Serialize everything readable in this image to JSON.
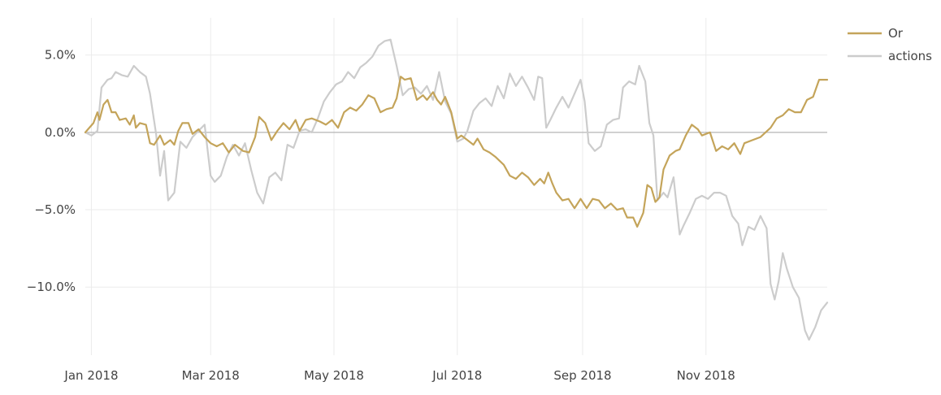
{
  "chart_data": {
    "type": "line",
    "title": "",
    "xlabel": "",
    "ylabel": "",
    "xlim": [
      "2017-12-29",
      "2018-12-31"
    ],
    "ylim": [
      -14.4,
      7.4
    ],
    "y_unit": "%",
    "x_ticks": [
      {
        "date": "2018-01-01",
        "label": "Jan 2018"
      },
      {
        "date": "2018-03-01",
        "label": "Mar 2018"
      },
      {
        "date": "2018-05-01",
        "label": "May 2018"
      },
      {
        "date": "2018-07-01",
        "label": "Jul 2018"
      },
      {
        "date": "2018-09-01",
        "label": "Sep 2018"
      },
      {
        "date": "2018-11-01",
        "label": "Nov 2018"
      }
    ],
    "y_ticks": [
      {
        "value": 5,
        "label": "5.0%"
      },
      {
        "value": 0,
        "label": "0.0%"
      },
      {
        "value": -5,
        "label": "−5.0%"
      },
      {
        "value": -10,
        "label": "−10.0%"
      }
    ],
    "grid": true,
    "zero_line": true,
    "legend_position": "top-right",
    "series": [
      {
        "name": "Or",
        "color": "#c4a45a",
        "points": [
          [
            "2017-12-29",
            0.0
          ],
          [
            "2018-01-02",
            0.6
          ],
          [
            "2018-01-04",
            1.3
          ],
          [
            "2018-01-05",
            0.8
          ],
          [
            "2018-01-07",
            1.8
          ],
          [
            "2018-01-09",
            2.1
          ],
          [
            "2018-01-11",
            1.3
          ],
          [
            "2018-01-13",
            1.3
          ],
          [
            "2018-01-15",
            0.8
          ],
          [
            "2018-01-18",
            0.9
          ],
          [
            "2018-01-20",
            0.5
          ],
          [
            "2018-01-22",
            1.1
          ],
          [
            "2018-01-23",
            0.3
          ],
          [
            "2018-01-25",
            0.6
          ],
          [
            "2018-01-28",
            0.5
          ],
          [
            "2018-01-30",
            -0.7
          ],
          [
            "2018-02-01",
            -0.8
          ],
          [
            "2018-02-04",
            -0.2
          ],
          [
            "2018-02-06",
            -0.8
          ],
          [
            "2018-02-09",
            -0.5
          ],
          [
            "2018-02-11",
            -0.8
          ],
          [
            "2018-02-13",
            0.1
          ],
          [
            "2018-02-15",
            0.6
          ],
          [
            "2018-02-18",
            0.6
          ],
          [
            "2018-02-20",
            -0.1
          ],
          [
            "2018-02-23",
            0.2
          ],
          [
            "2018-02-26",
            -0.3
          ],
          [
            "2018-03-01",
            -0.7
          ],
          [
            "2018-03-04",
            -0.9
          ],
          [
            "2018-03-07",
            -0.7
          ],
          [
            "2018-03-10",
            -1.3
          ],
          [
            "2018-03-13",
            -0.8
          ],
          [
            "2018-03-17",
            -1.2
          ],
          [
            "2018-03-20",
            -1.3
          ],
          [
            "2018-03-23",
            -0.3
          ],
          [
            "2018-03-25",
            1.0
          ],
          [
            "2018-03-28",
            0.6
          ],
          [
            "2018-03-31",
            -0.5
          ],
          [
            "2018-04-03",
            0.1
          ],
          [
            "2018-04-06",
            0.6
          ],
          [
            "2018-04-09",
            0.2
          ],
          [
            "2018-04-12",
            0.8
          ],
          [
            "2018-04-14",
            0.1
          ],
          [
            "2018-04-17",
            0.8
          ],
          [
            "2018-04-20",
            0.9
          ],
          [
            "2018-04-24",
            0.7
          ],
          [
            "2018-04-27",
            0.5
          ],
          [
            "2018-04-30",
            0.8
          ],
          [
            "2018-05-03",
            0.3
          ],
          [
            "2018-05-06",
            1.3
          ],
          [
            "2018-05-09",
            1.6
          ],
          [
            "2018-05-12",
            1.4
          ],
          [
            "2018-05-15",
            1.8
          ],
          [
            "2018-05-18",
            2.4
          ],
          [
            "2018-05-21",
            2.2
          ],
          [
            "2018-05-24",
            1.3
          ],
          [
            "2018-05-27",
            1.5
          ],
          [
            "2018-05-30",
            1.6
          ],
          [
            "2018-06-01",
            2.2
          ],
          [
            "2018-06-03",
            3.6
          ],
          [
            "2018-06-05",
            3.4
          ],
          [
            "2018-06-08",
            3.5
          ],
          [
            "2018-06-11",
            2.1
          ],
          [
            "2018-06-14",
            2.4
          ],
          [
            "2018-06-16",
            2.1
          ],
          [
            "2018-06-19",
            2.6
          ],
          [
            "2018-06-21",
            2.1
          ],
          [
            "2018-06-23",
            1.8
          ],
          [
            "2018-06-25",
            2.3
          ],
          [
            "2018-06-28",
            1.3
          ],
          [
            "2018-07-01",
            -0.4
          ],
          [
            "2018-07-03",
            -0.2
          ],
          [
            "2018-07-06",
            -0.5
          ],
          [
            "2018-07-09",
            -0.8
          ],
          [
            "2018-07-11",
            -0.4
          ],
          [
            "2018-07-14",
            -1.1
          ],
          [
            "2018-07-17",
            -1.3
          ],
          [
            "2018-07-20",
            -1.6
          ],
          [
            "2018-07-24",
            -2.1
          ],
          [
            "2018-07-27",
            -2.8
          ],
          [
            "2018-07-30",
            -3.0
          ],
          [
            "2018-08-02",
            -2.6
          ],
          [
            "2018-08-05",
            -2.9
          ],
          [
            "2018-08-08",
            -3.4
          ],
          [
            "2018-08-11",
            -3.0
          ],
          [
            "2018-08-13",
            -3.3
          ],
          [
            "2018-08-15",
            -2.6
          ],
          [
            "2018-08-17",
            -3.3
          ],
          [
            "2018-08-19",
            -3.9
          ],
          [
            "2018-08-22",
            -4.4
          ],
          [
            "2018-08-25",
            -4.3
          ],
          [
            "2018-08-28",
            -4.9
          ],
          [
            "2018-08-31",
            -4.3
          ],
          [
            "2018-09-03",
            -4.9
          ],
          [
            "2018-09-06",
            -4.3
          ],
          [
            "2018-09-09",
            -4.4
          ],
          [
            "2018-09-12",
            -4.9
          ],
          [
            "2018-09-15",
            -4.6
          ],
          [
            "2018-09-18",
            -5.0
          ],
          [
            "2018-09-21",
            -4.9
          ],
          [
            "2018-09-23",
            -5.5
          ],
          [
            "2018-09-26",
            -5.5
          ],
          [
            "2018-09-28",
            -6.1
          ],
          [
            "2018-10-01",
            -5.2
          ],
          [
            "2018-10-03",
            -3.4
          ],
          [
            "2018-10-05",
            -3.6
          ],
          [
            "2018-10-07",
            -4.5
          ],
          [
            "2018-10-09",
            -4.2
          ],
          [
            "2018-10-11",
            -2.4
          ],
          [
            "2018-10-14",
            -1.5
          ],
          [
            "2018-10-17",
            -1.2
          ],
          [
            "2018-10-19",
            -1.1
          ],
          [
            "2018-10-22",
            -0.2
          ],
          [
            "2018-10-25",
            0.5
          ],
          [
            "2018-10-28",
            0.2
          ],
          [
            "2018-10-30",
            -0.2
          ],
          [
            "2018-11-03",
            0.0
          ],
          [
            "2018-11-06",
            -1.2
          ],
          [
            "2018-11-09",
            -0.9
          ],
          [
            "2018-11-12",
            -1.1
          ],
          [
            "2018-11-15",
            -0.7
          ],
          [
            "2018-11-18",
            -1.4
          ],
          [
            "2018-11-20",
            -0.7
          ],
          [
            "2018-11-24",
            -0.5
          ],
          [
            "2018-11-28",
            -0.3
          ],
          [
            "2018-12-03",
            0.3
          ],
          [
            "2018-12-06",
            0.9
          ],
          [
            "2018-12-09",
            1.1
          ],
          [
            "2018-12-12",
            1.5
          ],
          [
            "2018-12-15",
            1.3
          ],
          [
            "2018-12-18",
            1.3
          ],
          [
            "2018-12-21",
            2.1
          ],
          [
            "2018-12-24",
            2.3
          ],
          [
            "2018-12-27",
            3.4
          ],
          [
            "2018-12-31",
            3.4
          ]
        ]
      },
      {
        "name": "actions",
        "color": "#cccccc",
        "points": [
          [
            "2017-12-29",
            0.0
          ],
          [
            "2018-01-01",
            -0.2
          ],
          [
            "2018-01-04",
            0.1
          ],
          [
            "2018-01-06",
            2.9
          ],
          [
            "2018-01-09",
            3.4
          ],
          [
            "2018-01-11",
            3.5
          ],
          [
            "2018-01-13",
            3.9
          ],
          [
            "2018-01-16",
            3.7
          ],
          [
            "2018-01-19",
            3.6
          ],
          [
            "2018-01-22",
            4.3
          ],
          [
            "2018-01-25",
            3.9
          ],
          [
            "2018-01-28",
            3.6
          ],
          [
            "2018-01-30",
            2.5
          ],
          [
            "2018-02-02",
            -0.1
          ],
          [
            "2018-02-04",
            -2.8
          ],
          [
            "2018-02-06",
            -1.2
          ],
          [
            "2018-02-08",
            -4.4
          ],
          [
            "2018-02-11",
            -3.9
          ],
          [
            "2018-02-14",
            -0.6
          ],
          [
            "2018-02-17",
            -1.0
          ],
          [
            "2018-02-20",
            -0.3
          ],
          [
            "2018-02-23",
            0.1
          ],
          [
            "2018-02-26",
            0.5
          ],
          [
            "2018-03-01",
            -2.8
          ],
          [
            "2018-03-03",
            -3.2
          ],
          [
            "2018-03-06",
            -2.8
          ],
          [
            "2018-03-09",
            -1.6
          ],
          [
            "2018-03-12",
            -0.8
          ],
          [
            "2018-03-15",
            -1.5
          ],
          [
            "2018-03-18",
            -0.7
          ],
          [
            "2018-03-21",
            -2.4
          ],
          [
            "2018-03-24",
            -3.9
          ],
          [
            "2018-03-27",
            -4.6
          ],
          [
            "2018-03-30",
            -2.9
          ],
          [
            "2018-04-02",
            -2.6
          ],
          [
            "2018-04-05",
            -3.1
          ],
          [
            "2018-04-08",
            -0.8
          ],
          [
            "2018-04-11",
            -1.0
          ],
          [
            "2018-04-14",
            0.1
          ],
          [
            "2018-04-17",
            0.2
          ],
          [
            "2018-04-20",
            0.0
          ],
          [
            "2018-04-23",
            0.9
          ],
          [
            "2018-04-26",
            2.0
          ],
          [
            "2018-04-29",
            2.6
          ],
          [
            "2018-05-02",
            3.1
          ],
          [
            "2018-05-05",
            3.3
          ],
          [
            "2018-05-08",
            3.9
          ],
          [
            "2018-05-11",
            3.5
          ],
          [
            "2018-05-14",
            4.2
          ],
          [
            "2018-05-17",
            4.5
          ],
          [
            "2018-05-20",
            4.9
          ],
          [
            "2018-05-23",
            5.6
          ],
          [
            "2018-05-26",
            5.9
          ],
          [
            "2018-05-29",
            6.0
          ],
          [
            "2018-06-01",
            4.3
          ],
          [
            "2018-06-04",
            2.4
          ],
          [
            "2018-06-07",
            2.8
          ],
          [
            "2018-06-10",
            2.9
          ],
          [
            "2018-06-13",
            2.5
          ],
          [
            "2018-06-16",
            3.0
          ],
          [
            "2018-06-19",
            2.1
          ],
          [
            "2018-06-22",
            3.9
          ],
          [
            "2018-06-25",
            2.0
          ],
          [
            "2018-06-28",
            1.2
          ],
          [
            "2018-07-01",
            -0.6
          ],
          [
            "2018-07-04",
            -0.4
          ],
          [
            "2018-07-06",
            0.1
          ],
          [
            "2018-07-09",
            1.4
          ],
          [
            "2018-07-12",
            1.9
          ],
          [
            "2018-07-15",
            2.2
          ],
          [
            "2018-07-18",
            1.7
          ],
          [
            "2018-07-21",
            3.0
          ],
          [
            "2018-07-24",
            2.2
          ],
          [
            "2018-07-27",
            3.8
          ],
          [
            "2018-07-30",
            3.0
          ],
          [
            "2018-08-02",
            3.6
          ],
          [
            "2018-08-05",
            2.9
          ],
          [
            "2018-08-08",
            2.1
          ],
          [
            "2018-08-10",
            3.6
          ],
          [
            "2018-08-12",
            3.5
          ],
          [
            "2018-08-14",
            0.3
          ],
          [
            "2018-08-16",
            0.8
          ],
          [
            "2018-08-19",
            1.6
          ],
          [
            "2018-08-22",
            2.3
          ],
          [
            "2018-08-25",
            1.6
          ],
          [
            "2018-08-28",
            2.5
          ],
          [
            "2018-08-31",
            3.4
          ],
          [
            "2018-09-02",
            2.0
          ],
          [
            "2018-09-04",
            -0.7
          ],
          [
            "2018-09-07",
            -1.2
          ],
          [
            "2018-09-10",
            -0.9
          ],
          [
            "2018-09-13",
            0.5
          ],
          [
            "2018-09-16",
            0.8
          ],
          [
            "2018-09-19",
            0.9
          ],
          [
            "2018-09-21",
            2.9
          ],
          [
            "2018-09-24",
            3.3
          ],
          [
            "2018-09-27",
            3.1
          ],
          [
            "2018-09-29",
            4.3
          ],
          [
            "2018-10-02",
            3.3
          ],
          [
            "2018-10-04",
            0.6
          ],
          [
            "2018-10-06",
            -0.2
          ],
          [
            "2018-10-08",
            -4.4
          ],
          [
            "2018-10-11",
            -3.9
          ],
          [
            "2018-10-13",
            -4.2
          ],
          [
            "2018-10-16",
            -2.9
          ],
          [
            "2018-10-19",
            -6.6
          ],
          [
            "2018-10-21",
            -6.0
          ],
          [
            "2018-10-24",
            -5.2
          ],
          [
            "2018-10-27",
            -4.3
          ],
          [
            "2018-10-30",
            -4.1
          ],
          [
            "2018-11-02",
            -4.3
          ],
          [
            "2018-11-05",
            -3.9
          ],
          [
            "2018-11-08",
            -3.9
          ],
          [
            "2018-11-11",
            -4.1
          ],
          [
            "2018-11-14",
            -5.4
          ],
          [
            "2018-11-17",
            -5.9
          ],
          [
            "2018-11-19",
            -7.3
          ],
          [
            "2018-11-22",
            -6.1
          ],
          [
            "2018-11-25",
            -6.3
          ],
          [
            "2018-11-28",
            -5.4
          ],
          [
            "2018-12-01",
            -6.2
          ],
          [
            "2018-12-03",
            -9.8
          ],
          [
            "2018-12-05",
            -10.8
          ],
          [
            "2018-12-07",
            -9.6
          ],
          [
            "2018-12-09",
            -7.8
          ],
          [
            "2018-12-11",
            -8.8
          ],
          [
            "2018-12-14",
            -10.0
          ],
          [
            "2018-12-17",
            -10.7
          ],
          [
            "2018-12-20",
            -12.8
          ],
          [
            "2018-12-22",
            -13.4
          ],
          [
            "2018-12-25",
            -12.6
          ],
          [
            "2018-12-28",
            -11.5
          ],
          [
            "2018-12-31",
            -11.0
          ]
        ]
      }
    ]
  }
}
